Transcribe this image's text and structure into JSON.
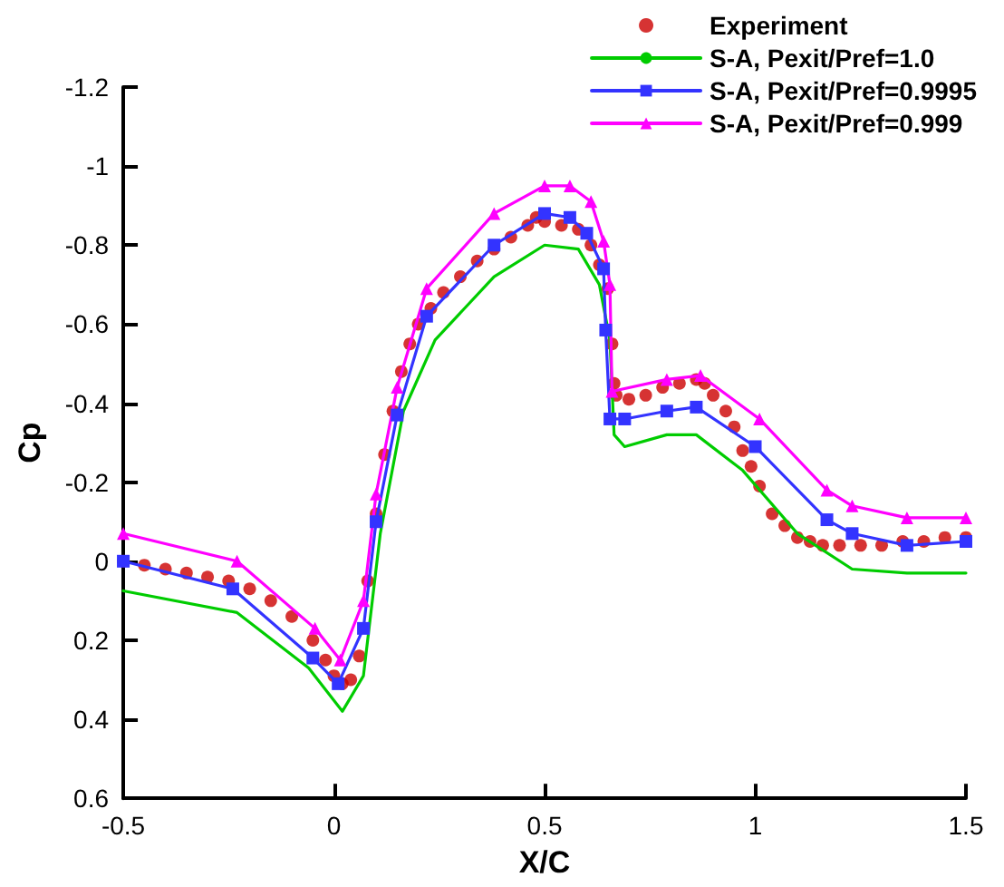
{
  "chart_data": {
    "type": "line",
    "xlabel": "X/C",
    "ylabel": "Cp",
    "xlim": [
      -0.5,
      1.5
    ],
    "xticks": [
      -0.5,
      0,
      0.5,
      1,
      1.5
    ],
    "ylim": [
      0.6,
      -1.2
    ],
    "yticks": [
      -1.2,
      -1,
      -0.8,
      -0.6,
      -0.4,
      -0.2,
      0,
      0.2,
      0.4,
      0.6
    ],
    "grid": false,
    "legend": "top right",
    "series": [
      {
        "name": "Experiment",
        "type": "scatter",
        "marker": "circle",
        "color": "#cc0000",
        "x": [
          -0.5,
          -0.45,
          -0.4,
          -0.35,
          -0.3,
          -0.25,
          -0.2,
          -0.15,
          -0.1,
          -0.05,
          -0.02,
          0,
          0.02,
          0.04,
          0.06,
          0.08,
          0.1,
          0.12,
          0.14,
          0.16,
          0.18,
          0.2,
          0.23,
          0.26,
          0.3,
          0.34,
          0.38,
          0.42,
          0.46,
          0.48,
          0.5,
          0.54,
          0.58,
          0.61,
          0.63,
          0.65,
          0.66,
          0.665,
          0.67,
          0.7,
          0.74,
          0.78,
          0.82,
          0.86,
          0.88,
          0.9,
          0.93,
          0.95,
          0.97,
          0.99,
          1.01,
          1.04,
          1.07,
          1.1,
          1.13,
          1.16,
          1.2,
          1.25,
          1.3,
          1.35,
          1.4,
          1.45,
          1.5
        ],
        "values": [
          0,
          0.01,
          0.02,
          0.03,
          0.04,
          0.05,
          0.07,
          0.1,
          0.14,
          0.2,
          0.25,
          0.29,
          0.31,
          0.3,
          0.24,
          0.05,
          -0.12,
          -0.27,
          -0.38,
          -0.48,
          -0.55,
          -0.6,
          -0.64,
          -0.68,
          -0.72,
          -0.76,
          -0.79,
          -0.82,
          -0.85,
          -0.87,
          -0.86,
          -0.85,
          -0.84,
          -0.8,
          -0.75,
          -0.69,
          -0.55,
          -0.45,
          -0.42,
          -0.41,
          -0.42,
          -0.44,
          -0.45,
          -0.46,
          -0.45,
          -0.42,
          -0.38,
          -0.34,
          -0.28,
          -0.24,
          -0.19,
          -0.12,
          -0.09,
          -0.06,
          -0.05,
          -0.04,
          -0.04,
          -0.04,
          -0.04,
          -0.05,
          -0.05,
          -0.06,
          -0.06
        ]
      },
      {
        "name": "S-A, Pexit/Pref=1.0",
        "marker": "none",
        "color": "#00cc00",
        "x": [
          -0.5,
          -0.23,
          -0.06,
          0.02,
          0.07,
          0.11,
          0.165,
          0.24,
          0.38,
          0.5,
          0.58,
          0.63,
          0.655,
          0.665,
          0.69,
          0.79,
          0.86,
          0.97,
          1.1,
          1.23,
          1.36,
          1.5
        ],
        "values": [
          0.075,
          0.13,
          0.27,
          0.38,
          0.29,
          -0.07,
          -0.38,
          -0.56,
          -0.72,
          -0.8,
          -0.79,
          -0.7,
          -0.56,
          -0.32,
          -0.29,
          -0.32,
          -0.32,
          -0.23,
          -0.07,
          0.02,
          0.03,
          0.03
        ]
      },
      {
        "name": "S-A, Pexit/Pref=0.9995",
        "marker": "square",
        "color": "#3333ff",
        "x": [
          -0.5,
          -0.24,
          -0.05,
          0.01,
          0.07,
          0.1,
          0.15,
          0.22,
          0.38,
          0.5,
          0.56,
          0.6,
          0.64,
          0.645,
          0.655,
          0.69,
          0.79,
          0.86,
          1.0,
          1.17,
          1.23,
          1.36,
          1.5
        ],
        "values": [
          0,
          0.07,
          0.245,
          0.31,
          0.17,
          -0.1,
          -0.37,
          -0.62,
          -0.8,
          -0.88,
          -0.87,
          -0.83,
          -0.74,
          -0.585,
          -0.36,
          -0.36,
          -0.38,
          -0.39,
          -0.29,
          -0.105,
          -0.07,
          -0.04,
          -0.05
        ]
      },
      {
        "name": "S-A, Pexit/Pref=0.999",
        "marker": "triangle",
        "color": "#ff00ff",
        "x": [
          -0.5,
          -0.23,
          -0.045,
          0.015,
          0.07,
          0.1,
          0.15,
          0.22,
          0.38,
          0.5,
          0.56,
          0.61,
          0.64,
          0.655,
          0.66,
          0.79,
          0.87,
          1.01,
          1.17,
          1.23,
          1.36,
          1.5
        ],
        "values": [
          -0.07,
          0,
          0.17,
          0.25,
          0.1,
          -0.17,
          -0.44,
          -0.69,
          -0.88,
          -0.95,
          -0.95,
          -0.91,
          -0.81,
          -0.7,
          -0.43,
          -0.46,
          -0.47,
          -0.36,
          -0.18,
          -0.14,
          -0.11,
          -0.11
        ]
      }
    ]
  }
}
